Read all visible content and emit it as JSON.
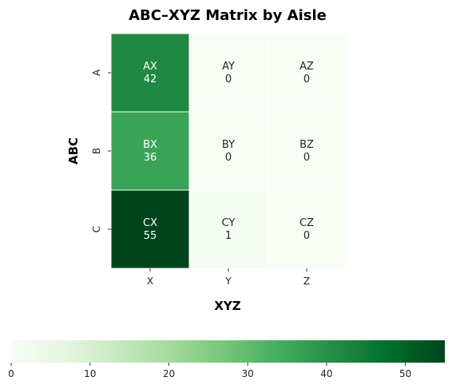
{
  "chart_data": {
    "type": "heatmap",
    "title": "ABC–XYZ Matrix by Aisle",
    "xlabel": "XYZ",
    "ylabel": "ABC",
    "x_categories": [
      "X",
      "Y",
      "Z"
    ],
    "y_categories": [
      "A",
      "B",
      "C"
    ],
    "cells": [
      [
        {
          "label": "AX",
          "value": 42
        },
        {
          "label": "AY",
          "value": 0
        },
        {
          "label": "AZ",
          "value": 0
        }
      ],
      [
        {
          "label": "BX",
          "value": 36
        },
        {
          "label": "BY",
          "value": 0
        },
        {
          "label": "BZ",
          "value": 0
        }
      ],
      [
        {
          "label": "CX",
          "value": 55
        },
        {
          "label": "CY",
          "value": 1
        },
        {
          "label": "CZ",
          "value": 0
        }
      ]
    ],
    "colorbar": {
      "min": 0,
      "max": 55,
      "ticks": [
        "0",
        "10",
        "20",
        "30",
        "40",
        "50"
      ],
      "orientation": "horizontal",
      "placement": "bottom"
    },
    "colormap": "Greens",
    "colors": {
      "low": "#f7fcf5",
      "high": "#00441b",
      "grid": "#ffffff",
      "text_light": "#ffffff",
      "text_dark": "#262626"
    }
  }
}
